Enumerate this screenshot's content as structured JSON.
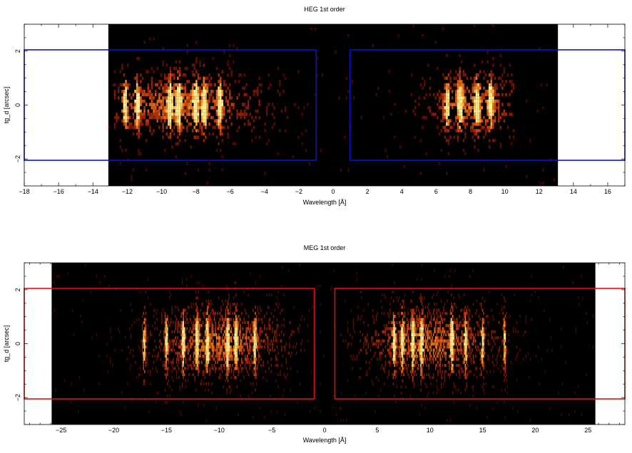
{
  "chart_data": [
    {
      "type": "heatmap",
      "title": "HEG 1st order",
      "xlabel": "Wavelength [Å]",
      "ylabel": "tg_d [arcsec]",
      "xlim": [
        -18,
        17
      ],
      "ylim": [
        -3,
        3
      ],
      "x_ticks": [
        -18,
        -16,
        -14,
        -12,
        -10,
        -8,
        -6,
        -4,
        -2,
        0,
        2,
        4,
        6,
        8,
        10,
        12,
        14,
        16
      ],
      "y_ticks": [
        -2,
        0,
        2
      ],
      "data_region_x": [
        -13.1,
        13.1
      ],
      "grid": false,
      "colormap": "black-red-orange-yellow",
      "line_peaks": [
        -12.1,
        -11.4,
        -9.5,
        -9.0,
        -8.0,
        -7.5,
        -6.6,
        6.65,
        7.4,
        8.4,
        9.2
      ],
      "regions": [
        {
          "name": "left extraction",
          "x": [
            -0.98,
            -18
          ],
          "y": [
            -2.05,
            2.05
          ]
        },
        {
          "name": "right extraction",
          "x": [
            0.98,
            17
          ],
          "y": [
            -2.05,
            2.05
          ]
        }
      ],
      "region_color": "#1010cc"
    },
    {
      "type": "heatmap",
      "title": "MEG 1st order",
      "xlabel": "Wavelength [Å]",
      "ylabel": "tg_d [arcsec]",
      "xlim": [
        -28.5,
        28.5
      ],
      "ylim": [
        -3,
        3
      ],
      "x_ticks": [
        -25,
        -20,
        -15,
        -10,
        -5,
        0,
        5,
        10,
        15,
        20,
        25
      ],
      "y_ticks": [
        -2,
        0,
        2
      ],
      "data_region_x": [
        -25.9,
        25.7
      ],
      "grid": false,
      "colormap": "black-red-orange-yellow",
      "line_peaks": [
        -17.1,
        -15.0,
        -13.4,
        -12.1,
        -11.1,
        -9.2,
        -8.4,
        -6.6,
        6.6,
        7.4,
        8.4,
        9.2,
        12.1,
        13.4,
        15.0,
        17.1
      ],
      "regions": [
        {
          "name": "left extraction",
          "x": [
            -0.98,
            -28.5
          ],
          "y": [
            -2.05,
            2.05
          ]
        },
        {
          "name": "right extraction",
          "x": [
            0.98,
            28.5
          ],
          "y": [
            -2.05,
            2.05
          ]
        }
      ],
      "region_color": "#dd1111"
    }
  ]
}
